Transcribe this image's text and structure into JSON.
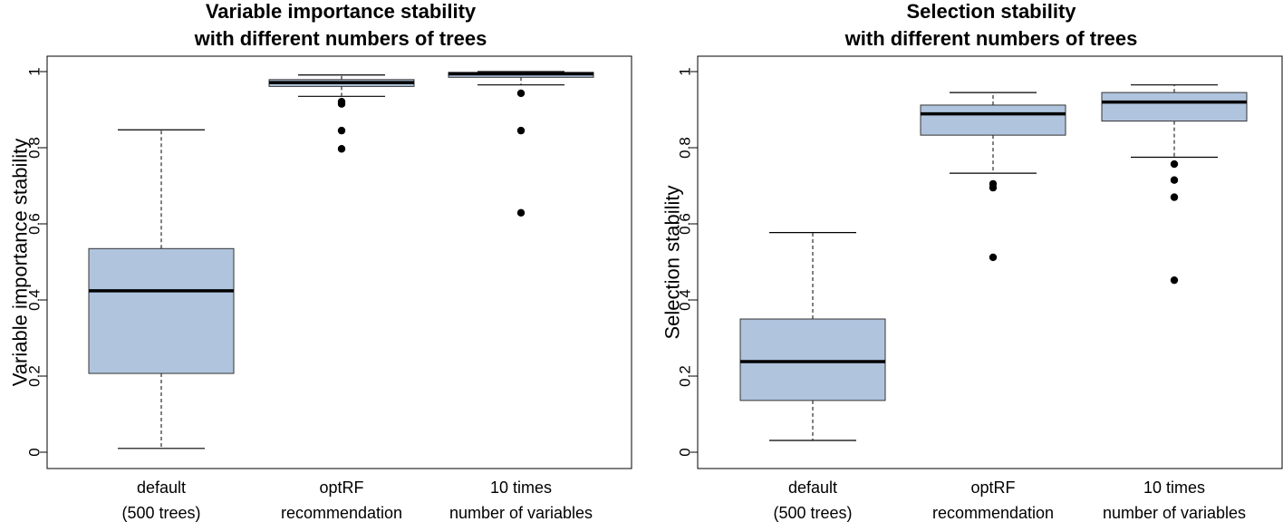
{
  "chart_data": [
    {
      "type": "boxplot",
      "title": [
        "Variable importance stability",
        "with different numbers of trees"
      ],
      "xlabel": "",
      "ylabel": "Variable importance stability",
      "ylim": [
        0,
        1
      ],
      "yticks": [
        "0",
        "0.2",
        "0.4",
        "0.6",
        "0.8",
        "1"
      ],
      "tick_values": [
        0,
        0.2,
        0.4,
        0.6,
        0.8,
        1
      ],
      "box_color": "#b0c4de",
      "categories": [
        [
          "default",
          "(500 trees)"
        ],
        [
          "optRF",
          "recommendation"
        ],
        [
          "10 times",
          "number of variables"
        ]
      ],
      "boxes": [
        {
          "whisker_low": 0.01,
          "q1": 0.207,
          "median": 0.424,
          "q3": 0.535,
          "whisker_high": 0.847,
          "outliers": []
        },
        {
          "whisker_low": 0.935,
          "q1": 0.961,
          "median": 0.971,
          "q3": 0.979,
          "whisker_high": 0.991,
          "outliers": [
            0.921,
            0.915,
            0.845,
            0.797
          ]
        },
        {
          "whisker_low": 0.965,
          "q1": 0.985,
          "median": 0.994,
          "q3": 0.998,
          "whisker_high": 1.0,
          "outliers": [
            0.943,
            0.845,
            0.629
          ]
        }
      ]
    },
    {
      "type": "boxplot",
      "title": [
        "Selection stability",
        "with different numbers of trees"
      ],
      "xlabel": "",
      "ylabel": "Selection stability",
      "ylim": [
        0,
        1
      ],
      "yticks": [
        "0",
        "0.2",
        "0.4",
        "0.6",
        "0.8",
        "1"
      ],
      "tick_values": [
        0,
        0.2,
        0.4,
        0.6,
        0.8,
        1
      ],
      "box_color": "#b0c4de",
      "categories": [
        [
          "default",
          "(500 trees)"
        ],
        [
          "optRF",
          "recommendation"
        ],
        [
          "10 times",
          "number of variables"
        ]
      ],
      "boxes": [
        {
          "whisker_low": 0.031,
          "q1": 0.136,
          "median": 0.238,
          "q3": 0.35,
          "whisker_high": 0.577,
          "outliers": []
        },
        {
          "whisker_low": 0.733,
          "q1": 0.833,
          "median": 0.889,
          "q3": 0.912,
          "whisker_high": 0.945,
          "outliers": [
            0.705,
            0.695,
            0.512
          ]
        },
        {
          "whisker_low": 0.775,
          "q1": 0.87,
          "median": 0.92,
          "q3": 0.945,
          "whisker_high": 0.965,
          "outliers": [
            0.757,
            0.715,
            0.67,
            0.452
          ]
        }
      ]
    }
  ]
}
